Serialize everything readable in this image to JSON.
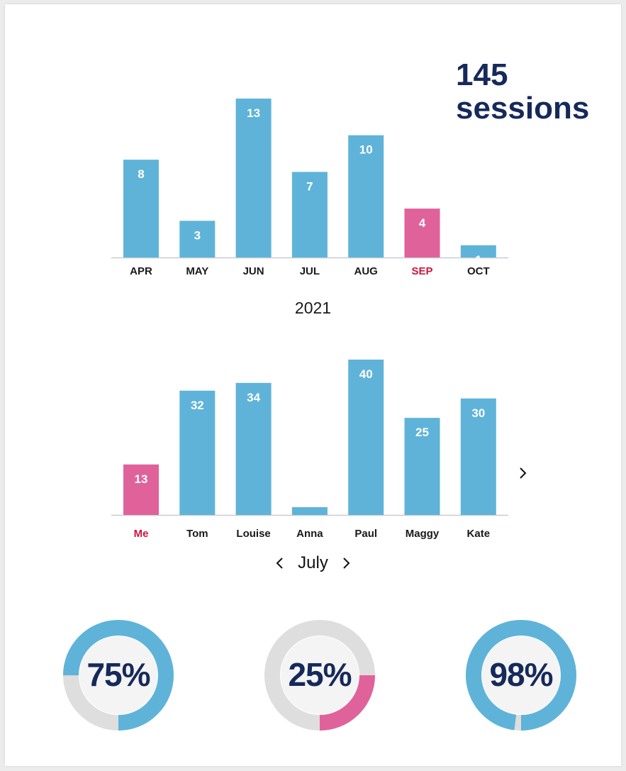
{
  "summary": {
    "count": "145",
    "unit": "sessions"
  },
  "year_label": "2021",
  "month_nav": {
    "label": "July",
    "prev_icon": "chevron-left-icon",
    "next_icon": "chevron-right-icon"
  },
  "people_next_icon": "chevron-right-icon",
  "colors": {
    "bar": "#5fb3d9",
    "highlight": "#e0629b",
    "highlight_text": "#d0153c",
    "navy": "#16295a",
    "track": "#dedede"
  },
  "chart_data": [
    {
      "type": "bar",
      "categories": [
        "APR",
        "MAY",
        "JUN",
        "JUL",
        "AUG",
        "SEP",
        "OCT"
      ],
      "values": [
        8,
        3,
        13,
        7,
        10,
        4,
        1
      ],
      "highlight": "SEP",
      "data_labels": true,
      "ylim": [
        0,
        13
      ]
    },
    {
      "type": "bar",
      "categories": [
        "Me",
        "Tom",
        "Louise",
        "Anna",
        "Paul",
        "Maggy",
        "Kate"
      ],
      "values": [
        13,
        32,
        34,
        2,
        40,
        25,
        30
      ],
      "highlight": "Me",
      "data_labels": true,
      "ylim": [
        0,
        40
      ]
    },
    {
      "type": "pie",
      "donuts": [
        {
          "value": 75,
          "label": "75%",
          "color": "#5fb3d9"
        },
        {
          "value": 25,
          "label": "25%",
          "color": "#e0629b"
        },
        {
          "value": 98,
          "label": "98%",
          "color": "#5fb3d9"
        }
      ]
    }
  ]
}
